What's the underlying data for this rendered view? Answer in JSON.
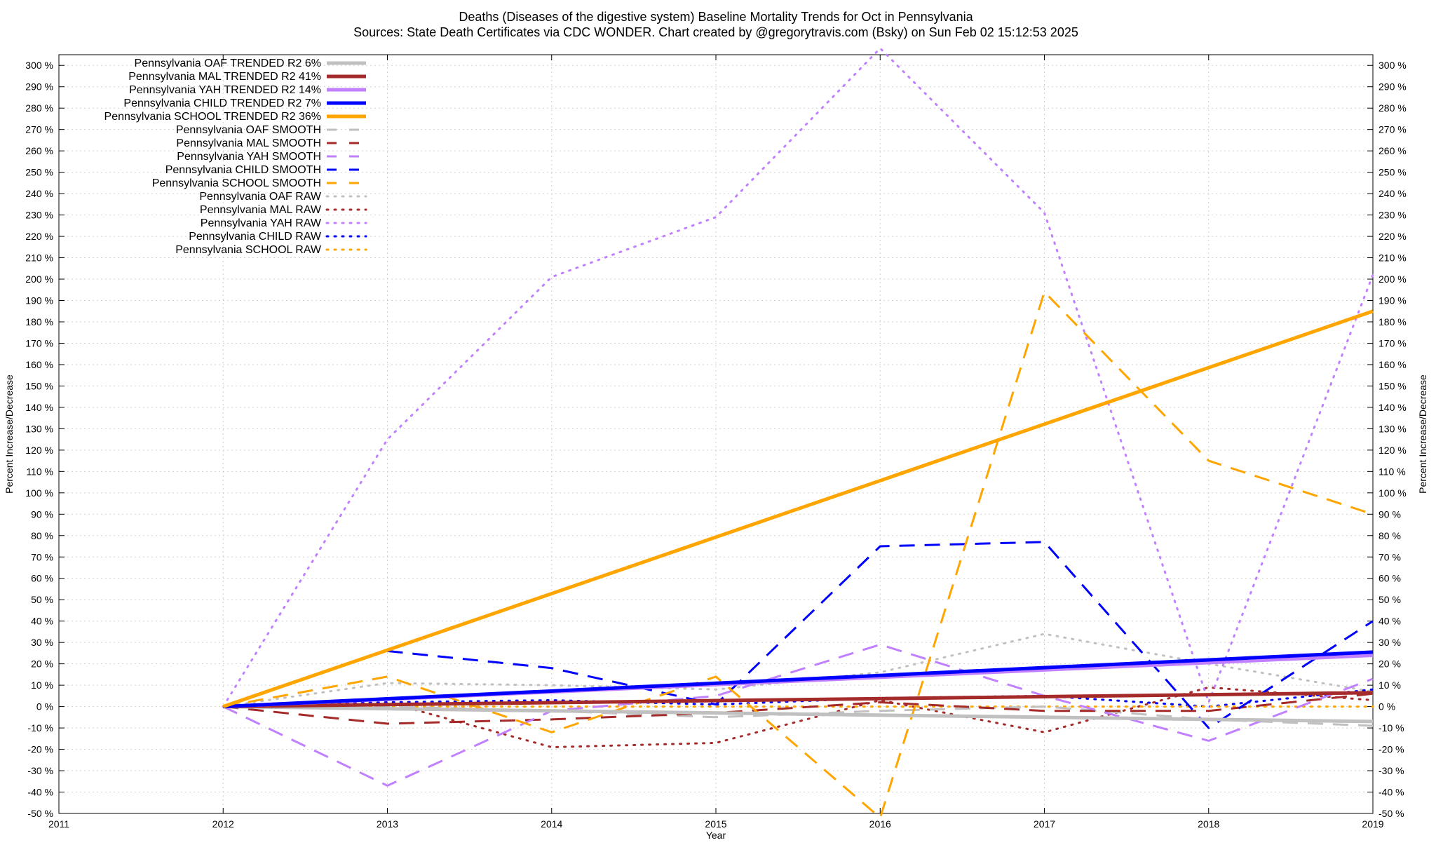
{
  "chart_data": {
    "type": "line",
    "title_lines": [
      "Deaths (Diseases of the digestive system)  Baseline Mortality Trends for Oct in Pennsylvania",
      "Sources: State Death Certificates via CDC WONDER.               Chart created by @gregorytravis.com (Bsky) on Sun Feb 02 15:12:53 2025"
    ],
    "xlabel": "Year",
    "ylabel": "Percent Increase/Decrease",
    "y2label": "Percent Increase/Decrease",
    "xlim": [
      2011,
      2019
    ],
    "ylim": [
      -50,
      305
    ],
    "x_ticks": [
      2011,
      2012,
      2013,
      2014,
      2015,
      2016,
      2017,
      2018,
      2019
    ],
    "y_ticks": [
      -50,
      -40,
      -30,
      -20,
      -10,
      0,
      10,
      20,
      30,
      40,
      50,
      60,
      70,
      80,
      90,
      100,
      110,
      120,
      130,
      140,
      150,
      160,
      170,
      180,
      190,
      200,
      210,
      220,
      230,
      240,
      250,
      260,
      270,
      280,
      290,
      300
    ],
    "y_tick_suffix": " %",
    "grid": true,
    "legend_position": "top-left",
    "series": [
      {
        "name": "Pennsylvania OAF TRENDED R2  6%",
        "style": "trend",
        "color": "#c0c0c0",
        "x": [
          2012,
          2019
        ],
        "y": [
          0,
          -7
        ]
      },
      {
        "name": "Pennsylvania MAL TRENDED R2  41%",
        "style": "trend",
        "color": "#a52a2a",
        "x": [
          2012,
          2019
        ],
        "y": [
          0,
          6.5
        ]
      },
      {
        "name": "Pennsylvania YAH TRENDED R2  14%",
        "style": "trend",
        "color": "#c080ff",
        "x": [
          2012,
          2019
        ],
        "y": [
          0,
          24
        ]
      },
      {
        "name": "Pennsylvania CHILD TRENDED R2  7%",
        "style": "trend",
        "color": "#0000ff",
        "x": [
          2012,
          2019
        ],
        "y": [
          0,
          25.5
        ]
      },
      {
        "name": "Pennsylvania SCHOOL TRENDED R2  36%",
        "style": "trend",
        "color": "#ffa500",
        "x": [
          2012,
          2019
        ],
        "y": [
          0,
          185
        ]
      },
      {
        "name": "Pennsylvania OAF SMOOTH",
        "style": "smooth",
        "color": "#c0c0c0",
        "x": [
          2012,
          2013,
          2014,
          2015,
          2016,
          2017,
          2018,
          2019
        ],
        "y": [
          0,
          0,
          -2,
          -5,
          -2,
          0,
          -6,
          -9
        ]
      },
      {
        "name": "Pennsylvania MAL SMOOTH",
        "style": "smooth",
        "color": "#a52a2a",
        "x": [
          2012,
          2013,
          2014,
          2015,
          2016,
          2017,
          2018,
          2019
        ],
        "y": [
          0,
          -8,
          -6,
          -3,
          2,
          -2,
          -2,
          6
        ]
      },
      {
        "name": "Pennsylvania YAH SMOOTH",
        "style": "smooth",
        "color": "#c080ff",
        "x": [
          2012,
          2013,
          2014,
          2015,
          2016,
          2017,
          2018,
          2019
        ],
        "y": [
          0,
          -37,
          -2,
          5,
          29,
          5,
          -16,
          13
        ]
      },
      {
        "name": "Pennsylvania CHILD SMOOTH",
        "style": "smooth",
        "color": "#0000ff",
        "x": [
          2013,
          2014,
          2015,
          2016,
          2017,
          2018,
          2019
        ],
        "y": [
          26,
          18,
          1,
          75,
          77,
          -10,
          40
        ]
      },
      {
        "name": "Pennsylvania SCHOOL SMOOTH",
        "style": "smooth",
        "color": "#ffa500",
        "x": [
          2012,
          2013,
          2014,
          2015,
          2016,
          2017,
          2018,
          2019
        ],
        "y": [
          0,
          14,
          -12,
          14,
          -52,
          194,
          115,
          90
        ]
      },
      {
        "name": "Pennsylvania OAF RAW",
        "style": "raw",
        "color": "#c0c0c0",
        "x": [
          2012,
          2013,
          2014,
          2015,
          2016,
          2017,
          2018,
          2019
        ],
        "y": [
          0,
          11,
          10,
          8,
          16,
          34,
          20,
          7
        ]
      },
      {
        "name": "Pennsylvania MAL RAW",
        "style": "raw",
        "color": "#a52a2a",
        "x": [
          2012,
          2013,
          2014,
          2015,
          2016,
          2017,
          2018,
          2019
        ],
        "y": [
          0,
          2,
          -19,
          -17,
          3,
          -12,
          9,
          3
        ]
      },
      {
        "name": "Pennsylvania YAH RAW",
        "style": "raw",
        "color": "#c080ff",
        "x": [
          2012,
          2013,
          2014,
          2015,
          2016,
          2017,
          2018,
          2019
        ],
        "y": [
          0,
          125,
          201,
          229,
          308,
          231,
          2,
          202
        ]
      },
      {
        "name": "Pennsylvania CHILD RAW",
        "style": "raw",
        "color": "#0000ff",
        "x": [
          2012,
          2013,
          2014,
          2015,
          2016,
          2017,
          2018,
          2019
        ],
        "y": [
          0,
          2,
          3,
          1,
          4,
          5,
          0,
          8
        ]
      },
      {
        "name": "Pennsylvania SCHOOL RAW",
        "style": "raw",
        "color": "#ffa500",
        "x": [
          2012,
          2013,
          2014,
          2015,
          2016,
          2017,
          2018,
          2019
        ],
        "y": [
          0,
          0,
          0,
          0,
          0,
          0,
          0,
          0
        ]
      }
    ]
  }
}
